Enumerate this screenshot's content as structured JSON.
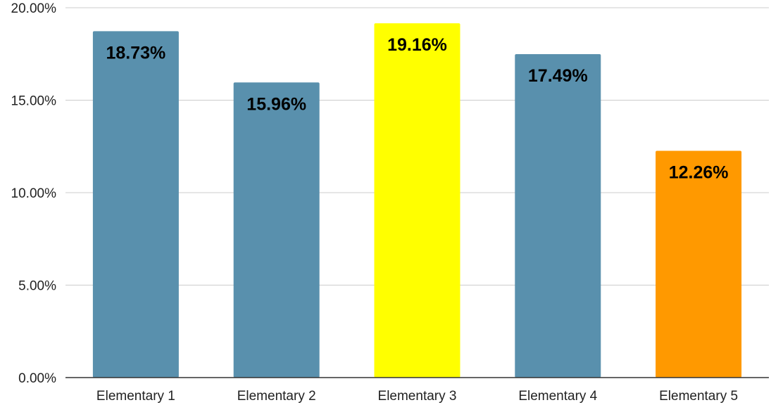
{
  "chart_data": {
    "type": "bar",
    "title": "",
    "xlabel": "",
    "ylabel": "",
    "categories": [
      "Elementary 1",
      "Elementary 2",
      "Elementary 3",
      "Elementary 4",
      "Elementary 5"
    ],
    "values": [
      18.73,
      15.96,
      19.16,
      17.49,
      12.26
    ],
    "data_labels": [
      "18.73%",
      "15.96%",
      "19.16%",
      "17.49%",
      "12.26%"
    ],
    "bar_colors": [
      "#5990ad",
      "#5990ad",
      "#ffff00",
      "#5990ad",
      "#ff9900"
    ],
    "ylim": [
      0,
      20
    ],
    "y_ticks": [
      0,
      5,
      10,
      15,
      20
    ],
    "y_tick_labels": [
      "0.00%",
      "5.00%",
      "10.00%",
      "15.00%",
      "20.00%"
    ],
    "grid": true,
    "legend": "none"
  }
}
